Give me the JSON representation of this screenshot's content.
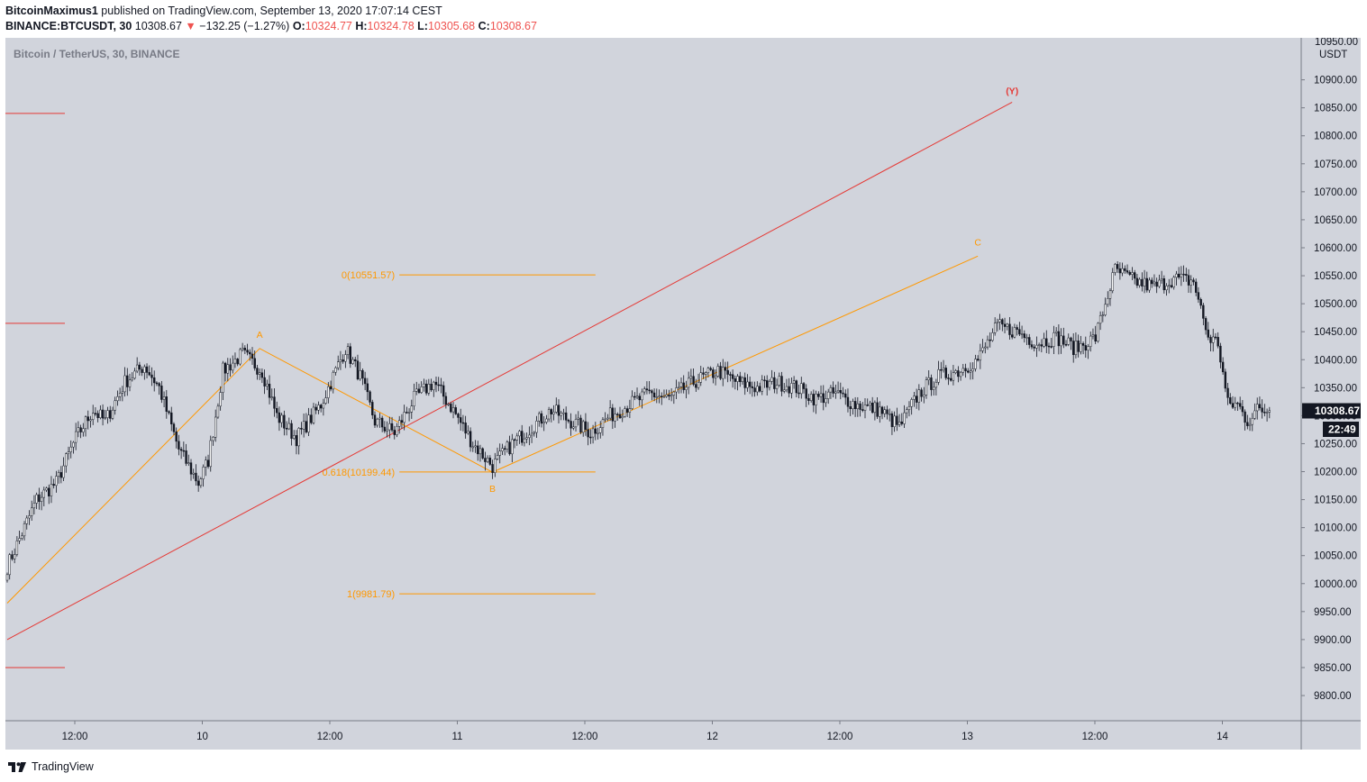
{
  "header": {
    "publisher": "BitcoinMaximus1",
    "published_text": " published on TradingView.com, September 13, 2020 17:07:14 CEST",
    "symbol": "BINANCE:BTCUSDT, 30",
    "last": "10308.67",
    "change_arrow": "▼",
    "change": "−132.25 (−1.27%)",
    "o_label": "O:",
    "o": "10324.77",
    "h_label": "H:",
    "h": "10324.78",
    "l_label": "L:",
    "l": "10305.68",
    "c_label": "C:",
    "c": "10308.67",
    "accent": "#ef5350"
  },
  "chart_title": "Bitcoin / TetherUS, 30, BINANCE",
  "price_axis": {
    "currency": "USDT",
    "top_partial": "10950.00",
    "last_price_label": "10308.67",
    "countdown": "22:49"
  },
  "footer": {
    "brand": "TradingView",
    "icon": "tradingview-logo-icon"
  },
  "colors": {
    "background": "#d1d4dc",
    "fib": "#ff9800",
    "channel": "#e53935",
    "candle_up": "#ffffff",
    "candle_down": "#131722"
  },
  "chart_data": {
    "type": "candlestick",
    "title": "Bitcoin / TetherUS, 30, BINANCE",
    "timeframe": "30",
    "y_axis_ticks": [
      "10900.00",
      "10850.00",
      "10800.00",
      "10750.00",
      "10700.00",
      "10650.00",
      "10600.00",
      "10550.00",
      "10500.00",
      "10450.00",
      "10400.00",
      "10350.00",
      "10300.00",
      "10250.00",
      "10200.00",
      "10150.00",
      "10100.00",
      "10050.00",
      "10000.00",
      "9950.00",
      "9900.00",
      "9850.00",
      "9800.00"
    ],
    "x_axis_ticks": [
      "12:00",
      "10",
      "12:00",
      "11",
      "12:00",
      "12",
      "12:00",
      "13",
      "12:00",
      "14"
    ],
    "ylim": [
      9755,
      10975
    ],
    "waypoints": [
      [
        0,
        10030
      ],
      [
        6,
        10090
      ],
      [
        12,
        10150
      ],
      [
        20,
        10180
      ],
      [
        28,
        10260
      ],
      [
        35,
        10310
      ],
      [
        40,
        10290
      ],
      [
        48,
        10360
      ],
      [
        56,
        10390
      ],
      [
        62,
        10350
      ],
      [
        70,
        10240
      ],
      [
        78,
        10180
      ],
      [
        82,
        10220
      ],
      [
        88,
        10380
      ],
      [
        96,
        10410
      ],
      [
        104,
        10380
      ],
      [
        110,
        10300
      ],
      [
        118,
        10260
      ],
      [
        128,
        10320
      ],
      [
        138,
        10420
      ],
      [
        144,
        10370
      ],
      [
        150,
        10290
      ],
      [
        158,
        10270
      ],
      [
        166,
        10330
      ],
      [
        174,
        10360
      ],
      [
        182,
        10310
      ],
      [
        190,
        10250
      ],
      [
        198,
        10210
      ],
      [
        206,
        10250
      ],
      [
        214,
        10280
      ],
      [
        222,
        10310
      ],
      [
        230,
        10290
      ],
      [
        238,
        10270
      ],
      [
        246,
        10300
      ],
      [
        254,
        10320
      ],
      [
        262,
        10340
      ],
      [
        270,
        10330
      ],
      [
        280,
        10360
      ],
      [
        290,
        10380
      ],
      [
        298,
        10360
      ],
      [
        306,
        10350
      ],
      [
        314,
        10360
      ],
      [
        322,
        10350
      ],
      [
        330,
        10330
      ],
      [
        338,
        10340
      ],
      [
        346,
        10320
      ],
      [
        356,
        10310
      ],
      [
        364,
        10280
      ],
      [
        372,
        10340
      ],
      [
        380,
        10370
      ],
      [
        388,
        10380
      ],
      [
        396,
        10400
      ],
      [
        404,
        10460
      ],
      [
        412,
        10450
      ],
      [
        420,
        10430
      ],
      [
        428,
        10440
      ],
      [
        436,
        10420
      ],
      [
        444,
        10440
      ],
      [
        452,
        10560
      ],
      [
        460,
        10540
      ],
      [
        468,
        10530
      ],
      [
        476,
        10545
      ],
      [
        484,
        10540
      ],
      [
        490,
        10440
      ],
      [
        494,
        10430
      ],
      [
        498,
        10320
      ],
      [
        502,
        10320
      ],
      [
        506,
        10290
      ],
      [
        510,
        10310
      ],
      [
        515,
        10309
      ]
    ],
    "annotations": [
      {
        "label": "A",
        "price": 10420,
        "bar": 103
      },
      {
        "label": "B",
        "price": 10199,
        "bar": 198
      },
      {
        "label": "C",
        "price": 10585,
        "bar": 396
      },
      {
        "label": "(Y)",
        "price": 10855,
        "bar": 410
      }
    ],
    "zigzag": [
      [
        0,
        9965
      ],
      [
        103,
        10420
      ],
      [
        198,
        10199
      ],
      [
        396,
        10585
      ]
    ],
    "channel_line": [
      [
        0,
        9900
      ],
      [
        410,
        10860
      ]
    ],
    "fib_levels": [
      {
        "label": "0(10551.57)",
        "price": 10551.57
      },
      {
        "label": "0.618(10199.44)",
        "price": 10199.44
      },
      {
        "label": "1(9981.79)",
        "price": 9981.79
      }
    ],
    "fib_bar_range": [
      160,
      240
    ],
    "left_markers": [
      10840,
      10465,
      9850
    ],
    "last_price": 10308.67
  }
}
